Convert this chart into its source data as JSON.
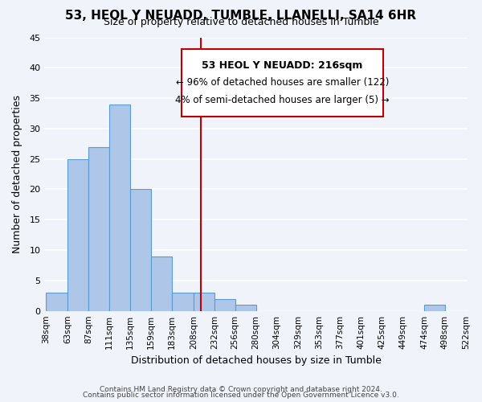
{
  "title": "53, HEOL Y NEUADD, TUMBLE, LLANELLI, SA14 6HR",
  "subtitle": "Size of property relative to detached houses in Tumble",
  "xlabel": "Distribution of detached houses by size in Tumble",
  "ylabel": "Number of detached properties",
  "bar_edges": [
    38,
    63,
    87,
    111,
    135,
    159,
    183,
    208,
    232,
    256,
    280,
    304,
    329,
    353,
    377,
    401,
    425,
    449,
    474,
    498,
    522
  ],
  "bar_heights": [
    3,
    25,
    27,
    34,
    20,
    9,
    3,
    3,
    2,
    1,
    0,
    0,
    0,
    0,
    0,
    0,
    0,
    0,
    1,
    0
  ],
  "bar_color": "#aec6e8",
  "bar_edge_color": "#5b9bd5",
  "vline_x": 216,
  "vline_color": "#c00000",
  "ylim": [
    0,
    45
  ],
  "annotation_title": "53 HEOL Y NEUADD: 216sqm",
  "annotation_line1": "← 96% of detached houses are smaller (122)",
  "annotation_line2": "4% of semi-detached houses are larger (5) →",
  "annotation_box_color": "#ffffff",
  "annotation_box_edge": "#c00000",
  "footer1": "Contains HM Land Registry data © Crown copyright and database right 2024.",
  "footer2": "Contains public sector information licensed under the Open Government Licence v3.0.",
  "bg_color": "#f0f4fa",
  "tick_labels": [
    "38sqm",
    "63sqm",
    "87sqm",
    "111sqm",
    "135sqm",
    "159sqm",
    "183sqm",
    "208sqm",
    "232sqm",
    "256sqm",
    "280sqm",
    "304sqm",
    "329sqm",
    "353sqm",
    "377sqm",
    "401sqm",
    "425sqm",
    "449sqm",
    "474sqm",
    "498sqm",
    "522sqm"
  ]
}
